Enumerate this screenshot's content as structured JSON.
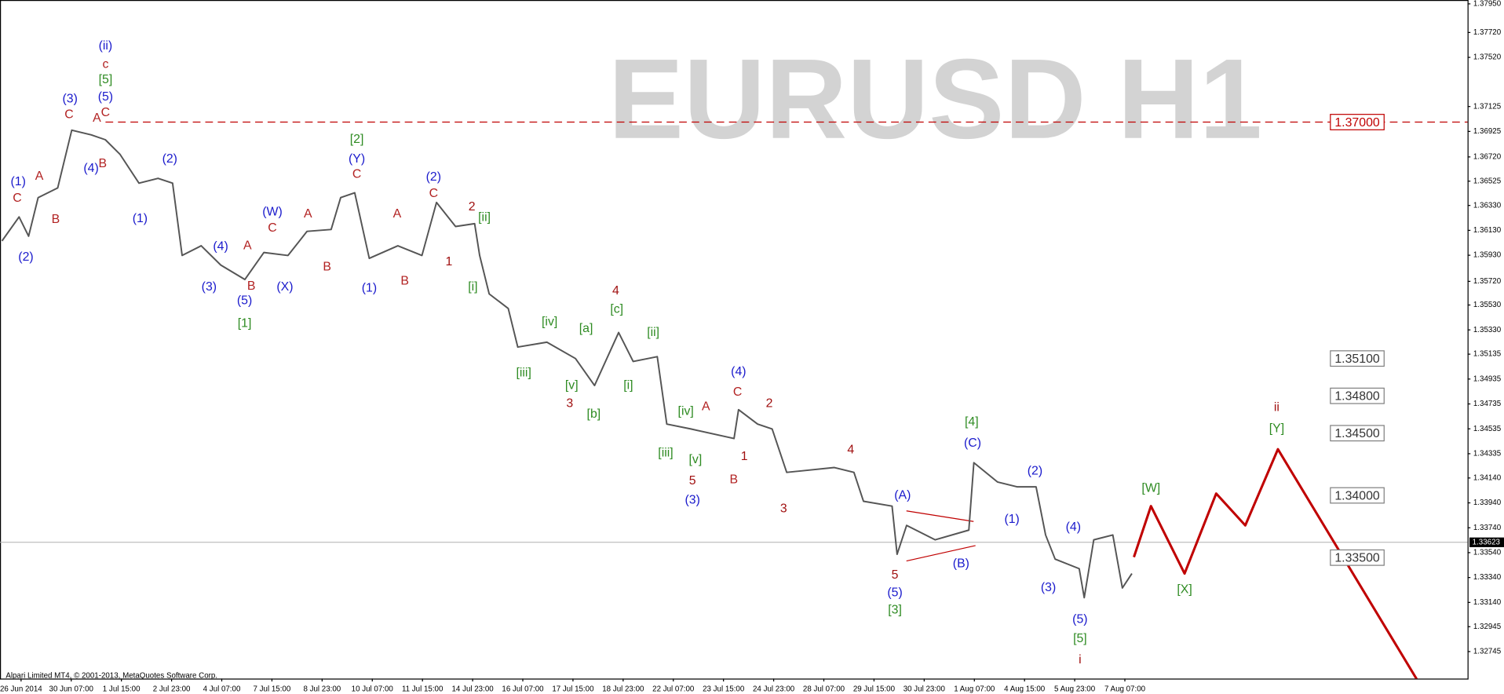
{
  "chart_data": {
    "type": "line",
    "title": "EURUSD H1",
    "footer": "Alpari Limited MT4, © 2001-2013, MetaQuotes Software Corp.",
    "xlim": [
      -0.42,
      28.83
    ],
    "ylim": [
      1.32528,
      1.37981
    ],
    "xticks": [
      {
        "value": 0,
        "label": "26 Jun 2014"
      },
      {
        "value": 1,
        "label": "30 Jun 07:00"
      },
      {
        "value": 2,
        "label": "1 Jul 15:00"
      },
      {
        "value": 3,
        "label": "2 Jul 23:00"
      },
      {
        "value": 4,
        "label": "4 Jul 07:00"
      },
      {
        "value": 5,
        "label": "7 Jul 15:00"
      },
      {
        "value": 6,
        "label": "8 Jul 23:00"
      },
      {
        "value": 7,
        "label": "10 Jul 07:00"
      },
      {
        "value": 8,
        "label": "11 Jul 15:00"
      },
      {
        "value": 9,
        "label": "14 Jul 23:00"
      },
      {
        "value": 10,
        "label": "16 Jul 07:00"
      },
      {
        "value": 11,
        "label": "17 Jul 15:00"
      },
      {
        "value": 12,
        "label": "18 Jul 23:00"
      },
      {
        "value": 13,
        "label": "22 Jul 07:00"
      },
      {
        "value": 14,
        "label": "23 Jul 15:00"
      },
      {
        "value": 15,
        "label": "24 Jul 23:00"
      },
      {
        "value": 16,
        "label": "28 Jul 07:00"
      },
      {
        "value": 17,
        "label": "29 Jul 15:00"
      },
      {
        "value": 18,
        "label": "30 Jul 23:00"
      },
      {
        "value": 19,
        "label": "1 Aug 07:00"
      },
      {
        "value": 20,
        "label": "4 Aug 15:00"
      },
      {
        "value": 21,
        "label": "5 Aug 23:00"
      },
      {
        "value": 22,
        "label": "7 Aug 07:00"
      }
    ],
    "yticks": [
      {
        "value": 1.3795,
        "label": "1.37950"
      },
      {
        "value": 1.3772,
        "label": "1.37720"
      },
      {
        "value": 1.3752,
        "label": "1.37520"
      },
      {
        "value": 1.37125,
        "label": "1.37125"
      },
      {
        "value": 1.36925,
        "label": "1.36925"
      },
      {
        "value": 1.3672,
        "label": "1.36720"
      },
      {
        "value": 1.36525,
        "label": "1.36525"
      },
      {
        "value": 1.3633,
        "label": "1.36330"
      },
      {
        "value": 1.3613,
        "label": "1.36130"
      },
      {
        "value": 1.3593,
        "label": "1.35930"
      },
      {
        "value": 1.3572,
        "label": "1.35720"
      },
      {
        "value": 1.3553,
        "label": "1.35530"
      },
      {
        "value": 1.3533,
        "label": "1.35330"
      },
      {
        "value": 1.35135,
        "label": "1.35135"
      },
      {
        "value": 1.34935,
        "label": "1.34935"
      },
      {
        "value": 1.34735,
        "label": "1.34735"
      },
      {
        "value": 1.34535,
        "label": "1.34535"
      },
      {
        "value": 1.34335,
        "label": "1.34335"
      },
      {
        "value": 1.3414,
        "label": "1.34140"
      },
      {
        "value": 1.3394,
        "label": "1.33940"
      },
      {
        "value": 1.3374,
        "label": "1.33740"
      },
      {
        "value": 1.3354,
        "label": "1.33540"
      },
      {
        "value": 1.3334,
        "label": "1.33340"
      },
      {
        "value": 1.3314,
        "label": "1.33140"
      },
      {
        "value": 1.32945,
        "label": "1.32945"
      },
      {
        "value": 1.32745,
        "label": "1.32745"
      }
    ],
    "series": [
      {
        "name": "EURUSD",
        "color": "#555555",
        "x": [
          -0.38,
          -0.04,
          0.15,
          0.34,
          0.73,
          1.01,
          1.4,
          1.68,
          1.97,
          2.35,
          2.73,
          3.02,
          3.21,
          3.59,
          3.98,
          4.46,
          4.84,
          5.32,
          5.7,
          6.18,
          6.37,
          6.65,
          6.94,
          7.51,
          7.99,
          8.28,
          8.66,
          9.04,
          9.14,
          9.33,
          9.71,
          9.9,
          10.48,
          11.05,
          11.43,
          11.91,
          12.2,
          12.68,
          12.87,
          13.35,
          14.21,
          14.3,
          14.68,
          14.97,
          15.26,
          16.21,
          16.6,
          16.79,
          17.36,
          17.46,
          17.65,
          18.22,
          18.89,
          18.99,
          19.46,
          19.85,
          20.23,
          20.42,
          20.61,
          21.09,
          21.19,
          21.38,
          21.76,
          21.95,
          22.14
        ],
        "values": [
          1.36045,
          1.36238,
          1.36083,
          1.36393,
          1.36471,
          1.36935,
          1.36897,
          1.36858,
          1.36742,
          1.36509,
          1.36548,
          1.36509,
          1.35928,
          1.36006,
          1.35851,
          1.35735,
          1.35952,
          1.35928,
          1.36122,
          1.36137,
          1.36393,
          1.36432,
          1.35905,
          1.36006,
          1.35928,
          1.36354,
          1.36161,
          1.36184,
          1.35928,
          1.35619,
          1.35502,
          1.35192,
          1.35231,
          1.351,
          1.34883,
          1.35309,
          1.35076,
          1.35115,
          1.34573,
          1.34534,
          1.34457,
          1.34689,
          1.34573,
          1.34534,
          1.34185,
          1.34224,
          1.34185,
          1.33953,
          1.33914,
          1.33527,
          1.33759,
          1.33643,
          1.33721,
          1.34263,
          1.34108,
          1.34069,
          1.34069,
          1.33682,
          1.33488,
          1.33411,
          1.33178,
          1.33643,
          1.33682,
          1.33256,
          1.33372
        ]
      },
      {
        "name": "Projection",
        "color": "#c00000",
        "x": [
          22.18,
          22.52,
          23.19,
          23.82,
          24.4,
          25.05,
          27.88
        ],
        "values": [
          1.33504,
          1.33914,
          1.33372,
          1.34015,
          1.33759,
          1.34371,
          1.32481
        ]
      }
    ],
    "levels": [
      {
        "value": 1.37,
        "label": "1.37000",
        "color": "#c00000",
        "dashed": true
      },
      {
        "value": 1.351,
        "label": "1.35100",
        "color": "#808080",
        "dashed": false
      },
      {
        "value": 1.348,
        "label": "1.34800",
        "color": "#808080",
        "dashed": false
      },
      {
        "value": 1.345,
        "label": "1.34500",
        "color": "#808080",
        "dashed": false
      },
      {
        "value": 1.34,
        "label": "1.34000",
        "color": "#808080",
        "dashed": false
      },
      {
        "value": 1.335,
        "label": "1.33500",
        "color": "#808080",
        "dashed": false
      }
    ],
    "current_price": {
      "value": 1.33623,
      "label": "1.33623"
    },
    "wave_labels": [
      {
        "text": "(ii)",
        "color": "#1a1acc"
      },
      {
        "text": "c",
        "color": "#b22222"
      },
      {
        "text": "[5]",
        "color": "#2e8b22"
      },
      {
        "text": "(5)",
        "color": "#1a1acc"
      },
      {
        "text": "A",
        "color": "#b22222"
      },
      {
        "text": "C",
        "color": "#b22222"
      },
      {
        "text": "(3)",
        "color": "#1a1acc"
      },
      {
        "text": "C",
        "color": "#b22222"
      },
      {
        "text": "(4)",
        "color": "#1a1acc"
      },
      {
        "text": "B",
        "color": "#b22222"
      },
      {
        "text": "(1)",
        "color": "#1a1acc"
      },
      {
        "text": "C",
        "color": "#b22222"
      },
      {
        "text": "A",
        "color": "#b22222"
      },
      {
        "text": "B",
        "color": "#b22222"
      },
      {
        "text": "(2)",
        "color": "#1a1acc"
      },
      {
        "text": "(1)",
        "color": "#1a1acc"
      },
      {
        "text": "(2)",
        "color": "#1a1acc"
      },
      {
        "text": "(4)",
        "color": "#1a1acc"
      },
      {
        "text": "(3)",
        "color": "#1a1acc"
      },
      {
        "text": "A",
        "color": "#b22222"
      },
      {
        "text": "B",
        "color": "#b22222"
      },
      {
        "text": "(5)",
        "color": "#1a1acc"
      },
      {
        "text": "[1]",
        "color": "#2e8b22"
      },
      {
        "text": "C",
        "color": "#b22222"
      },
      {
        "text": "(W)",
        "color": "#1a1acc"
      },
      {
        "text": "(X)",
        "color": "#1a1acc"
      },
      {
        "text": "A",
        "color": "#b22222"
      },
      {
        "text": "B",
        "color": "#b22222"
      },
      {
        "text": "[2]",
        "color": "#2e8b22"
      },
      {
        "text": "(Y)",
        "color": "#1a1acc"
      },
      {
        "text": "C",
        "color": "#b22222"
      },
      {
        "text": "(1)",
        "color": "#1a1acc"
      },
      {
        "text": "A",
        "color": "#b22222"
      },
      {
        "text": "B",
        "color": "#b22222"
      },
      {
        "text": "(2)",
        "color": "#1a1acc"
      },
      {
        "text": "C",
        "color": "#b22222"
      },
      {
        "text": "2",
        "color": "#a01010"
      },
      {
        "text": "[ii]",
        "color": "#2e8b22"
      },
      {
        "text": "1",
        "color": "#a01010"
      },
      {
        "text": "[i]",
        "color": "#2e8b22"
      },
      {
        "text": "4",
        "color": "#a01010"
      },
      {
        "text": "[c]",
        "color": "#2e8b22"
      },
      {
        "text": "[iv]",
        "color": "#2e8b22"
      },
      {
        "text": "[a]",
        "color": "#2e8b22"
      },
      {
        "text": "[ii]",
        "color": "#2e8b22"
      },
      {
        "text": "[iii]",
        "color": "#2e8b22"
      },
      {
        "text": "[v]",
        "color": "#2e8b22"
      },
      {
        "text": "3",
        "color": "#a01010"
      },
      {
        "text": "[i]",
        "color": "#2e8b22"
      },
      {
        "text": "[b]",
        "color": "#2e8b22"
      },
      {
        "text": "(4)",
        "color": "#1a1acc"
      },
      {
        "text": "C",
        "color": "#b22222"
      },
      {
        "text": "2",
        "color": "#a01010"
      },
      {
        "text": "A",
        "color": "#b22222"
      },
      {
        "text": "[iv]",
        "color": "#2e8b22"
      },
      {
        "text": "1",
        "color": "#a01010"
      },
      {
        "text": "[iii]",
        "color": "#2e8b22"
      },
      {
        "text": "[v]",
        "color": "#2e8b22"
      },
      {
        "text": "5",
        "color": "#a01010"
      },
      {
        "text": "B",
        "color": "#b22222"
      },
      {
        "text": "(3)",
        "color": "#1a1acc"
      },
      {
        "text": "3",
        "color": "#a01010"
      },
      {
        "text": "4",
        "color": "#a01010"
      },
      {
        "text": "(A)",
        "color": "#1a1acc"
      },
      {
        "text": "[4]",
        "color": "#2e8b22"
      },
      {
        "text": "(C)",
        "color": "#1a1acc"
      },
      {
        "text": "(2)",
        "color": "#1a1acc"
      },
      {
        "text": "(1)",
        "color": "#1a1acc"
      },
      {
        "text": "(4)",
        "color": "#1a1acc"
      },
      {
        "text": "(B)",
        "color": "#1a1acc"
      },
      {
        "text": "5",
        "color": "#a01010"
      },
      {
        "text": "(5)",
        "color": "#1a1acc"
      },
      {
        "text": "[3]",
        "color": "#2e8b22"
      },
      {
        "text": "(3)",
        "color": "#1a1acc"
      },
      {
        "text": "(5)",
        "color": "#1a1acc"
      },
      {
        "text": "[5]",
        "color": "#2e8b22"
      },
      {
        "text": "i",
        "color": "#a01010"
      },
      {
        "text": "[W]",
        "color": "#2e8b22"
      },
      {
        "text": "[X]",
        "color": "#2e8b22"
      },
      {
        "text": "ii",
        "color": "#a01010"
      },
      {
        "text": "[Y]",
        "color": "#2e8b22"
      }
    ]
  }
}
